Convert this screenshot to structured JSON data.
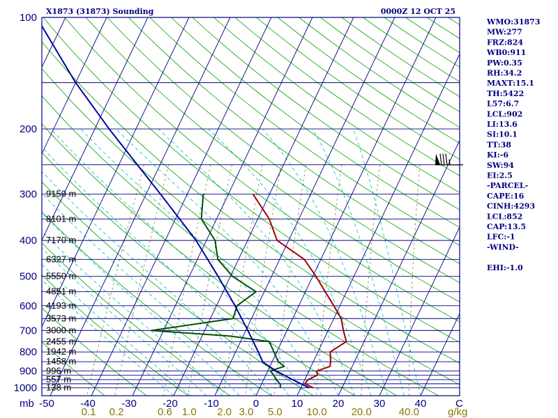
{
  "header": {
    "title": "X1873 (31873) Sounding",
    "time": "0000Z 12 OCT 25"
  },
  "indices": [
    "WMO:31873",
    "MW:277",
    "FRZ:824",
    "WB0:911",
    "PW:0.35",
    "RH:34.2",
    "MAXT:15.1",
    "TH:5422",
    "L57:6.7",
    "LCL:902",
    "LI:13.6",
    "SI:10.1",
    "TT:38",
    "KI:-6",
    "SW:94",
    "EI:2.5",
    "-PARCEL-",
    "CAPE:16",
    "CINH:4293",
    "LCL:852",
    "CAP:13.5",
    "LFC:-1",
    "-WIND-",
    "",
    "EHI:-1.0"
  ],
  "colors": {
    "frame": "#000080",
    "isobar": "#000080",
    "isotherm": "#000080",
    "dry_adiabat": "#00a000",
    "moist_adiabat": "#00c0c0",
    "mixing_ratio": "#808040",
    "temperature": "#a00000",
    "dewpoint": "#005000",
    "parcel": "#0000a0",
    "mixing_label": "#8b7500"
  },
  "chart_data": {
    "type": "skew-t",
    "title": "X1873 (31873) Sounding",
    "pressure_unit": "mb",
    "pressure_ticks": [
      100,
      200,
      300,
      400,
      500,
      600,
      700,
      800,
      900,
      1000
    ],
    "isobars": [
      150,
      250,
      300,
      350,
      400,
      450,
      500,
      550,
      600,
      650,
      700,
      750,
      800,
      850,
      900,
      925,
      950,
      975,
      1000
    ],
    "temperature_ticks": [
      -50,
      -40,
      -30,
      -20,
      -10,
      0,
      10,
      20,
      30,
      40
    ],
    "temperature_tick_labels": [
      "-50",
      "-40",
      "-30",
      "-20",
      "-10",
      "0",
      "10",
      "20",
      "30",
      "40"
    ],
    "temperature_unit": "C",
    "mixing_ratio_ticks": [
      "0.1",
      "0.2",
      "0.6",
      "1.0",
      "2.0",
      "3.0",
      "5.0",
      "10.0",
      "20.0",
      "40.0"
    ],
    "mixing_ratio_unit": "g/kg",
    "heights": [
      {
        "p": 300,
        "label": "9150 m"
      },
      {
        "p": 350,
        "label": "8101 m"
      },
      {
        "p": 400,
        "label": "7170 m"
      },
      {
        "p": 450,
        "label": "6327 m"
      },
      {
        "p": 500,
        "label": "5550 m"
      },
      {
        "p": 550,
        "label": "4851 m"
      },
      {
        "p": 600,
        "label": "4193 m"
      },
      {
        "p": 650,
        "label": "3573 m"
      },
      {
        "p": 700,
        "label": "3000 m"
      },
      {
        "p": 750,
        "label": "2455 m"
      },
      {
        "p": 800,
        "label": "1942 m"
      },
      {
        "p": 850,
        "label": "1458 m"
      },
      {
        "p": 900,
        "label": "996 m"
      },
      {
        "p": 950,
        "label": "557 m"
      },
      {
        "p": 1000,
        "label": "138 m"
      }
    ],
    "series": [
      {
        "id": "temperature",
        "points": [
          [
            1000,
            13.0
          ],
          [
            975,
            10.5
          ],
          [
            950,
            10.8
          ],
          [
            925,
            12.5
          ],
          [
            900,
            12.0
          ],
          [
            875,
            14.6
          ],
          [
            850,
            14.2
          ],
          [
            800,
            13.0
          ],
          [
            750,
            15.7
          ],
          [
            700,
            13.7
          ],
          [
            650,
            11.8
          ],
          [
            600,
            8.5
          ],
          [
            550,
            4.8
          ],
          [
            500,
            0.8
          ],
          [
            450,
            -4.0
          ],
          [
            400,
            -12.8
          ],
          [
            350,
            -17.2
          ],
          [
            300,
            -24.0
          ]
        ]
      },
      {
        "id": "dewpoint",
        "points": [
          [
            1000,
            5.0
          ],
          [
            975,
            4.5
          ],
          [
            950,
            3.0
          ],
          [
            925,
            2.0
          ],
          [
            900,
            0.6
          ],
          [
            875,
            3.5
          ],
          [
            850,
            1.5
          ],
          [
            800,
            -0.7
          ],
          [
            750,
            -3.0
          ],
          [
            725,
            -13.0
          ],
          [
            700,
            -33.0
          ],
          [
            650,
            -14.5
          ],
          [
            600,
            -15.0
          ],
          [
            550,
            -12.0
          ],
          [
            500,
            -19.5
          ],
          [
            450,
            -25.0
          ],
          [
            400,
            -27.9
          ],
          [
            350,
            -33.7
          ],
          [
            300,
            -36.1
          ]
        ]
      },
      {
        "id": "parcel",
        "points": [
          [
            1000,
            12.0
          ],
          [
            950,
            7.0
          ],
          [
            900,
            2.0
          ],
          [
            852,
            -2.2
          ],
          [
            800,
            -4.5
          ],
          [
            700,
            -9.5
          ],
          [
            600,
            -15.5
          ],
          [
            500,
            -23.0
          ],
          [
            400,
            -32.5
          ],
          [
            300,
            -46.5
          ],
          [
            250,
            -55.5
          ],
          [
            200,
            -66.5
          ],
          [
            150,
            -80.0
          ],
          [
            100,
            -97.0
          ]
        ]
      }
    ],
    "wind_barbs": [
      {
        "p": 250,
        "direction_deg": 270,
        "speed_kt": 85
      }
    ]
  }
}
